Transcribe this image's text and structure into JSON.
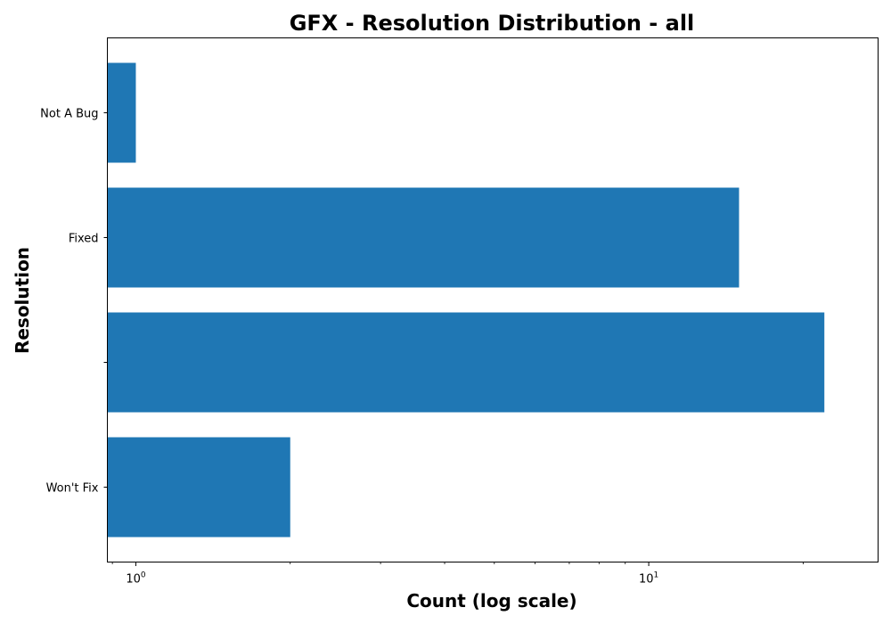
{
  "chart_data": {
    "type": "bar",
    "orientation": "horizontal",
    "title": "GFX - Resolution Distribution - all",
    "xlabel": "Count (log scale)",
    "ylabel": "Resolution",
    "x_scale": "log",
    "xlim": [
      0.88,
      28
    ],
    "x_ticks": [
      {
        "value": 1,
        "base": "10",
        "exponent": "0"
      },
      {
        "value": 10,
        "base": "10",
        "exponent": "1"
      }
    ],
    "categories": [
      "Not A Bug",
      "Fixed",
      "",
      "Won't Fix"
    ],
    "values": [
      1,
      15,
      22,
      2
    ],
    "bar_color": "#1f77b4",
    "grid": false,
    "legend": "none"
  }
}
